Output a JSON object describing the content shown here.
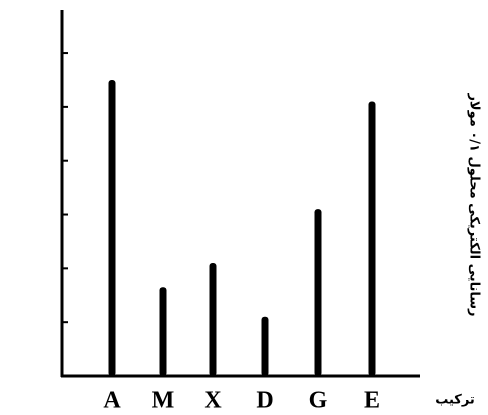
{
  "chart_data": {
    "type": "bar",
    "x_label": "ترکیب",
    "y_label": "رسانایی الکتریکی محلول ۰/۱ مولار",
    "categories": [
      "A",
      "M",
      "X",
      "D",
      "G",
      "E"
    ],
    "values": [
      5.5,
      1.65,
      2.1,
      1.1,
      3.1,
      5.1
    ],
    "color": "#000000",
    "ylim": [
      0,
      6.8
    ],
    "yticks": [
      1,
      2,
      3,
      4,
      5,
      6
    ],
    "grid": false
  }
}
